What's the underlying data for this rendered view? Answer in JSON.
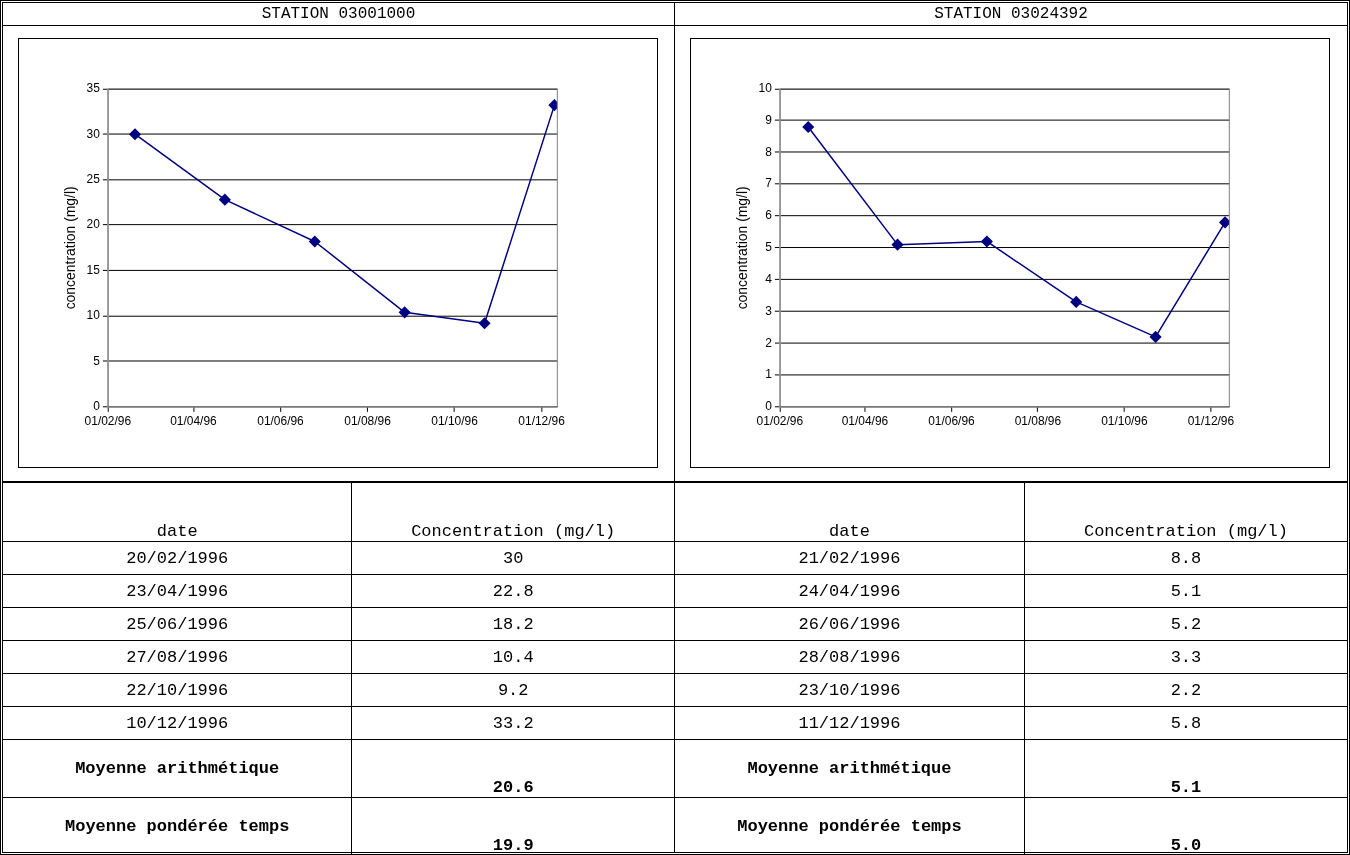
{
  "chart_data": [
    {
      "type": "line",
      "title": "STATION 03001000",
      "ylabel": "concentration (mg/l)",
      "x": [
        "1996-02-20",
        "1996-04-23",
        "1996-06-25",
        "1996-08-27",
        "1996-10-22",
        "1996-12-10"
      ],
      "series": [
        {
          "color": "#000080",
          "values": [
            30,
            22.8,
            18.2,
            10.4,
            9.2,
            33.2
          ]
        }
      ],
      "xlim": [
        "1996-02-01",
        "1996-12-12"
      ],
      "xticks": [
        {
          "value": "1996-02-01",
          "label": "01/02/96"
        },
        {
          "value": "1996-04-01",
          "label": "01/04/96"
        },
        {
          "value": "1996-06-01",
          "label": "01/06/96"
        },
        {
          "value": "1996-08-01",
          "label": "01/08/96"
        },
        {
          "value": "1996-10-01",
          "label": "01/10/96"
        },
        {
          "value": "1996-12-01",
          "label": "01/12/96"
        }
      ],
      "ylim": [
        0,
        35
      ],
      "yticks": [
        0,
        5,
        10,
        15,
        20,
        25,
        30,
        35
      ],
      "grid": "y",
      "legend": false,
      "marker": "diamond",
      "line_style": "solid",
      "annotations": [
        "date",
        "Concentration (mg/l)",
        "20/02/1996",
        "30",
        "23/04/1996",
        "22.8",
        "25/06/1996",
        "18.2",
        "27/08/1996",
        "10.4",
        "22/10/1996",
        "9.2",
        "10/12/1996",
        "33.2",
        "Moyenne arithmétique",
        "20.6",
        "Moyenne pondérée temps",
        "19.9"
      ]
    },
    {
      "type": "line",
      "title": "STATION 03024392",
      "ylabel": "concentration (mg/l)",
      "x": [
        "1996-02-21",
        "1996-04-24",
        "1996-06-26",
        "1996-08-28",
        "1996-10-23",
        "1996-12-11"
      ],
      "series": [
        {
          "color": "#000080",
          "values": [
            8.8,
            5.1,
            5.2,
            3.3,
            2.2,
            5.8
          ]
        }
      ],
      "xlim": [
        "1996-02-01",
        "1996-12-14"
      ],
      "xticks": [
        {
          "value": "1996-02-01",
          "label": "01/02/96"
        },
        {
          "value": "1996-04-01",
          "label": "01/04/96"
        },
        {
          "value": "1996-06-01",
          "label": "01/06/96"
        },
        {
          "value": "1996-08-01",
          "label": "01/08/96"
        },
        {
          "value": "1996-10-01",
          "label": "01/10/96"
        },
        {
          "value": "1996-12-01",
          "label": "01/12/96"
        }
      ],
      "ylim": [
        0,
        10
      ],
      "yticks": [
        0,
        1,
        2,
        3,
        4,
        5,
        6,
        7,
        8,
        9,
        10
      ],
      "grid": "y",
      "legend": false,
      "marker": "diamond",
      "line_style": "solid",
      "annotations": [
        "date",
        "Concentration (mg/l)",
        "21/02/1996",
        "8.8",
        "24/04/1996",
        "5.1",
        "26/06/1996",
        "5.2",
        "28/08/1996",
        "3.3",
        "23/10/1996",
        "2.2",
        "11/12/1996",
        "5.8",
        "Moyenne arithmétique",
        "5.1",
        "Moyenne pondérée temps",
        "5.0"
      ]
    }
  ]
}
